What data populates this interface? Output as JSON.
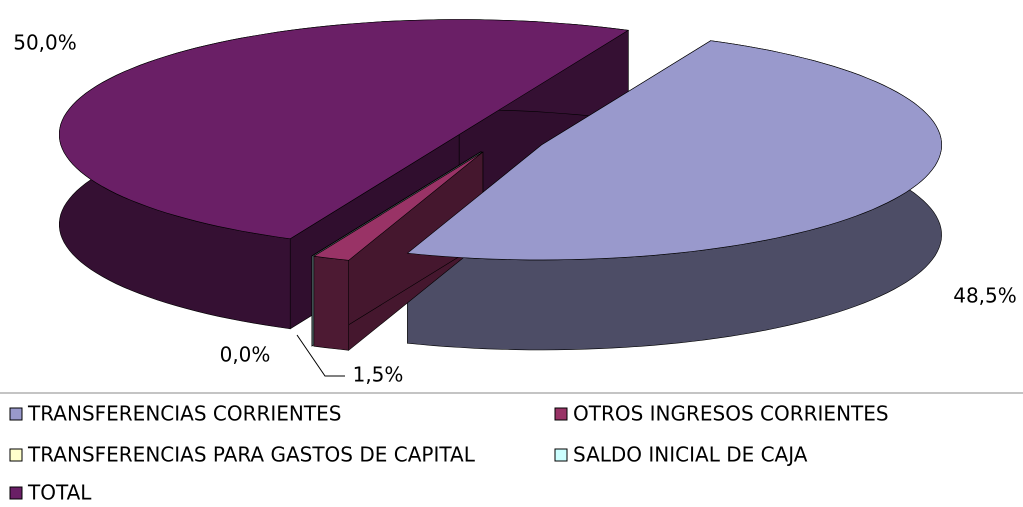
{
  "chart_data": {
    "type": "pie",
    "categories": [
      "TRANSFERENCIAS CORRIENTES",
      "OTROS INGRESOS CORRIENTES",
      "TRANSFERENCIAS PARA GASTOS DE CAPITAL",
      "SALDO INICIAL DE CAJA",
      "TOTAL"
    ],
    "values": [
      48.5,
      1.5,
      0.0,
      0.0,
      50.0
    ],
    "value_labels": [
      "48,5%",
      "1,5%",
      "0,0%",
      null,
      "50,0%"
    ],
    "colors": [
      "#9999cc",
      "#993366",
      "#ffffcc",
      "#ccffff",
      "#6a1f66"
    ],
    "legend": "bottom"
  }
}
